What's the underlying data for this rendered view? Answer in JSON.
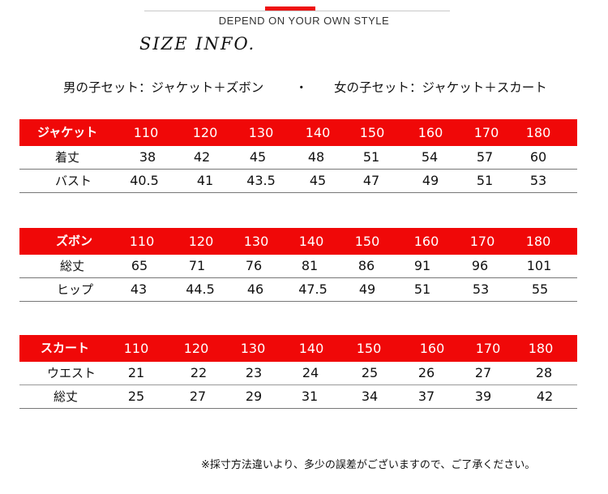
{
  "tagline": "DEPEND ON YOUR OWN STYLE",
  "heading": "SIZE INFO.",
  "sets": {
    "boys": "男の子セット：ジャケット＋ズボン",
    "separator": "・",
    "girls": "女の子セット：ジャケット＋スカート"
  },
  "tables": [
    {
      "title": "ジャケット",
      "sizes": [
        "110",
        "120",
        "130",
        "140",
        "150",
        "160",
        "170",
        "180"
      ],
      "rows": [
        {
          "label": "着丈",
          "values": [
            "38",
            "42",
            "45",
            "48",
            "51",
            "54",
            "57",
            "60"
          ]
        },
        {
          "label": "バスト",
          "values": [
            "40.5",
            "41",
            "43.5",
            "45",
            "47",
            "49",
            "51",
            "53"
          ]
        }
      ]
    },
    {
      "title": "ズボン",
      "sizes": [
        "110",
        "120",
        "130",
        "140",
        "150",
        "160",
        "170",
        "180"
      ],
      "rows": [
        {
          "label": "総丈",
          "values": [
            "65",
            "71",
            "76",
            "81",
            "86",
            "91",
            "96",
            "101"
          ]
        },
        {
          "label": "ヒップ",
          "values": [
            "43",
            "44.5",
            "46",
            "47.5",
            "49",
            "51",
            "53",
            "55"
          ]
        }
      ]
    },
    {
      "title": "スカート",
      "sizes": [
        "110",
        "120",
        "130",
        "140",
        "150",
        "160",
        "170",
        "180"
      ],
      "rows": [
        {
          "label": "ウエスト",
          "values": [
            "21",
            "22",
            "23",
            "24",
            "25",
            "26",
            "27",
            "28"
          ]
        },
        {
          "label": "総丈",
          "values": [
            "25",
            "27",
            "29",
            "31",
            "34",
            "37",
            "39",
            "42"
          ]
        }
      ]
    }
  ],
  "note": "※採寸方法違いより、多少の誤差がございますので、ご了承ください。",
  "colors": {
    "header": "#f00808",
    "header_text": "#ffffff",
    "accent": "#ee1111"
  }
}
